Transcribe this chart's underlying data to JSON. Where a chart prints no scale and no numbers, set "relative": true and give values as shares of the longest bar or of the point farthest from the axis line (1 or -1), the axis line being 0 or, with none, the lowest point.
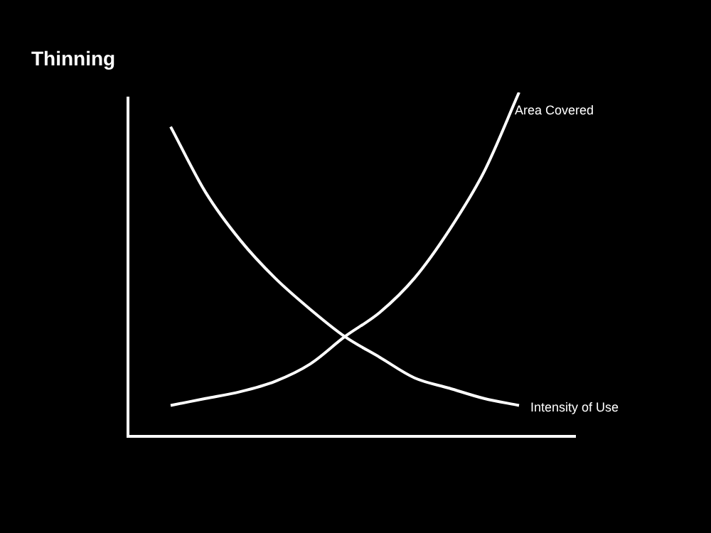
{
  "chart_data": {
    "type": "line",
    "title": "Thinning",
    "relative": true,
    "legend": false,
    "marker": "none",
    "categories": [
      null,
      null,
      null,
      null,
      null,
      null,
      null,
      null,
      null,
      null,
      null
    ],
    "series": [
      {
        "name": "Area Covered",
        "color": "#ffffff",
        "values": [
          0.09,
          0.11,
          0.13,
          0.16,
          0.21,
          0.29,
          0.36,
          0.46,
          0.6,
          0.77,
          1
        ]
      },
      {
        "name": "Intensity of Use",
        "color": "#ffffff",
        "values": [
          0.9,
          0.71,
          0.57,
          0.46,
          0.37,
          0.29,
          0.23,
          0.17,
          0.14,
          0.11,
          0.09
        ]
      }
    ]
  }
}
